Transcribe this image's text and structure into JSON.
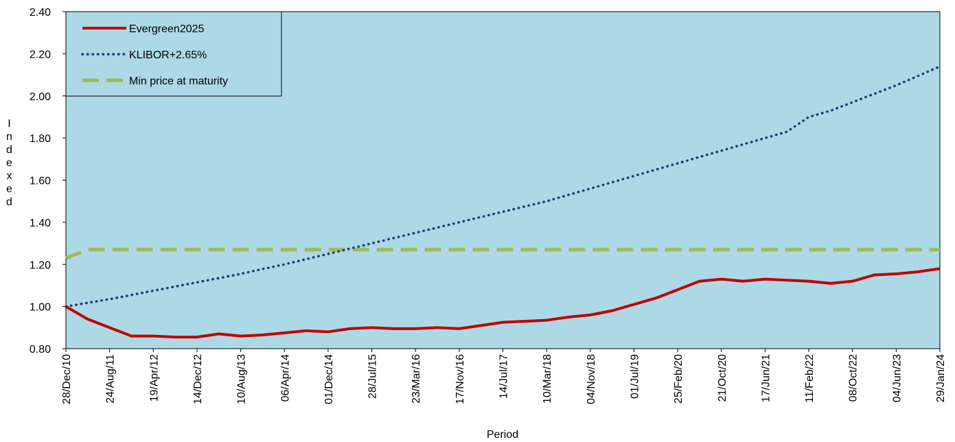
{
  "chart_data": {
    "type": "line",
    "x_label": "Period",
    "y_label": "Indexed",
    "categories": [
      "28/Dec/10",
      null,
      "24/Aug/11",
      null,
      "19/Apr/12",
      null,
      "14/Dec/12",
      null,
      "10/Aug/13",
      null,
      "06/Apr/14",
      null,
      "01/Dec/14",
      null,
      "28/Jul/15",
      null,
      "23/Mar/16",
      null,
      "17/Nov/16",
      null,
      "14/Jul/17",
      null,
      "10/Mar/18",
      null,
      "04/Nov/18",
      null,
      "01/Jul/19",
      null,
      "25/Feb/20",
      null,
      "21/Oct/20",
      null,
      "17/Jun/21",
      null,
      "11/Feb/22",
      null,
      "08/Oct/22",
      null,
      "04/Jun/23",
      null,
      "29/Jan/24"
    ],
    "series": [
      {
        "name": "Evergreen2025",
        "color": "#c00000",
        "style": "solid",
        "values": [
          1.0,
          0.94,
          0.9,
          0.86,
          0.86,
          0.855,
          0.855,
          0.87,
          0.86,
          0.865,
          0.875,
          0.885,
          0.88,
          0.895,
          0.9,
          0.895,
          0.895,
          0.9,
          0.895,
          0.91,
          0.925,
          0.93,
          0.935,
          0.95,
          0.96,
          0.98,
          1.01,
          1.04,
          1.08,
          1.12,
          1.13,
          1.12,
          1.13,
          1.125,
          1.12,
          1.11,
          1.12,
          1.15,
          1.155,
          1.165,
          1.18
        ]
      },
      {
        "name": "KLIBOR+2.65%",
        "color": "#1f3a73",
        "style": "dotted",
        "values": [
          1.0,
          1.018,
          1.035,
          1.055,
          1.075,
          1.095,
          1.115,
          1.135,
          1.155,
          1.178,
          1.2,
          1.225,
          1.25,
          1.275,
          1.3,
          1.325,
          1.35,
          1.375,
          1.4,
          1.425,
          1.45,
          1.475,
          1.5,
          1.53,
          1.56,
          1.59,
          1.62,
          1.65,
          1.68,
          1.71,
          1.74,
          1.77,
          1.8,
          1.83,
          1.9,
          1.93,
          1.97,
          2.01,
          2.05,
          2.095,
          2.14
        ]
      },
      {
        "name": "Min price at maturity",
        "color": "#9bbb59",
        "style": "dashed",
        "values": [
          1.23,
          1.27,
          1.27,
          1.27,
          1.27,
          1.27,
          1.27,
          1.27,
          1.27,
          1.27,
          1.27,
          1.27,
          1.27,
          1.27,
          1.27,
          1.27,
          1.27,
          1.27,
          1.27,
          1.27,
          1.27,
          1.27,
          1.27,
          1.27,
          1.27,
          1.27,
          1.27,
          1.27,
          1.27,
          1.27,
          1.27,
          1.27,
          1.27,
          1.27,
          1.27,
          1.27,
          1.27,
          1.27,
          1.27,
          1.27,
          1.27
        ]
      }
    ],
    "ylim": [
      0.8,
      2.4
    ],
    "yticks": [
      {
        "value": 0.8,
        "label": "0.80"
      },
      {
        "value": 1,
        "label": "1.00"
      },
      {
        "value": 1.2,
        "label": "1.20"
      },
      {
        "value": 1.4,
        "label": "1.40"
      },
      {
        "value": 1.6,
        "label": "1.60"
      },
      {
        "value": 1.8,
        "label": "1.80"
      },
      {
        "value": 2,
        "label": "2.00"
      },
      {
        "value": 2.2,
        "label": "2.20"
      },
      {
        "value": 2.4,
        "label": "2.40"
      }
    ],
    "plot_background": "#add8e6",
    "legend": "upper left"
  }
}
